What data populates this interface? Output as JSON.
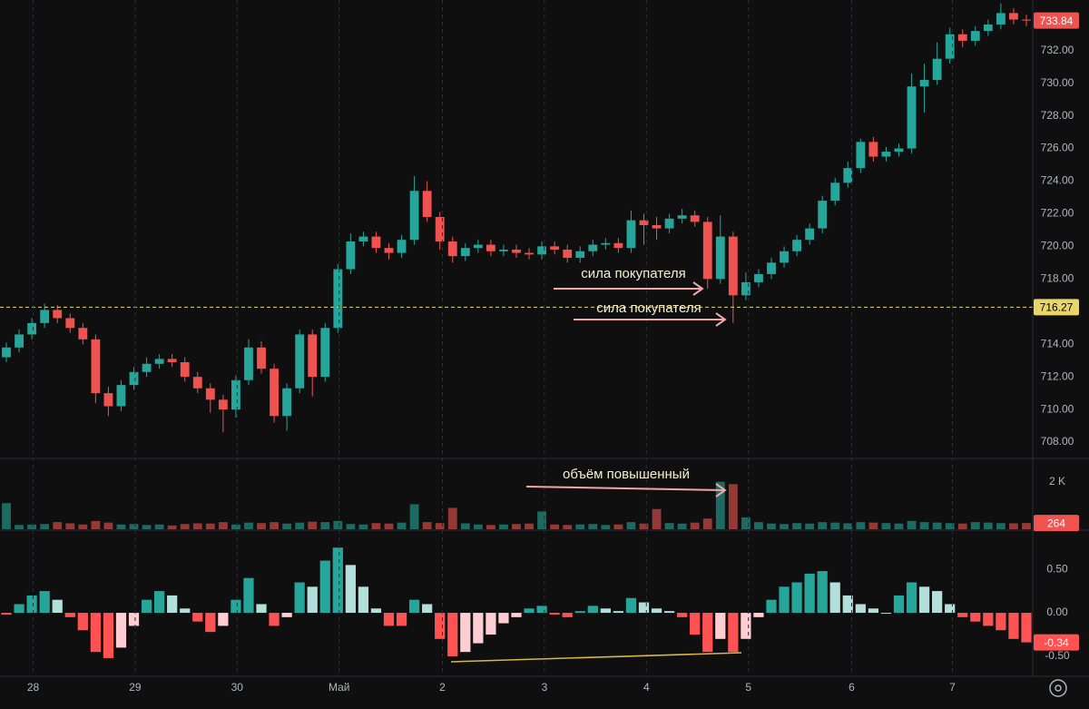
{
  "chart_data": [
    {
      "type": "candlestick",
      "up_color": "#26a69a",
      "down_color": "#ef5350",
      "price_line": 716.27,
      "price_line_color": "#e8d66b",
      "annotations": [
        "сила покупателя",
        "сила покупателя"
      ],
      "xlim": [
        -0.5,
        80.5
      ],
      "xticks": [
        {
          "value": 2.1,
          "label": "28"
        },
        {
          "value": 10.1,
          "label": "29"
        },
        {
          "value": 18.1,
          "label": "30"
        },
        {
          "value": 26.1,
          "label": "Май"
        },
        {
          "value": 34.2,
          "label": "2"
        },
        {
          "value": 42.2,
          "label": "3"
        },
        {
          "value": 50.2,
          "label": "4"
        },
        {
          "value": 58.2,
          "label": "5"
        },
        {
          "value": 66.3,
          "label": "6"
        },
        {
          "value": 74.2,
          "label": "7"
        }
      ],
      "ylim": [
        707.0,
        735.1
      ],
      "yticks": [
        {
          "value": 708,
          "label": "708.00"
        },
        {
          "value": 710,
          "label": "710.00"
        },
        {
          "value": 712,
          "label": "712.00"
        },
        {
          "value": 714,
          "label": "714.00"
        },
        {
          "value": 716,
          "label": "716.00"
        },
        {
          "value": 718,
          "label": "718.00"
        },
        {
          "value": 720,
          "label": "720.00"
        },
        {
          "value": 722,
          "label": "722.00"
        },
        {
          "value": 724,
          "label": "724.00"
        },
        {
          "value": 726,
          "label": "726.00"
        },
        {
          "value": 728,
          "label": "728.00"
        },
        {
          "value": 730,
          "label": "730.00"
        },
        {
          "value": 732,
          "label": "732.00"
        }
      ],
      "x": [
        0,
        1,
        2,
        3,
        4,
        5,
        6,
        7,
        8,
        9,
        10,
        11,
        12,
        13,
        14,
        15,
        16,
        17,
        18,
        19,
        20,
        21,
        22,
        23,
        24,
        25,
        26,
        27,
        28,
        29,
        30,
        31,
        32,
        33,
        34,
        35,
        36,
        37,
        38,
        39,
        40,
        41,
        42,
        43,
        44,
        45,
        46,
        47,
        48,
        49,
        50,
        51,
        52,
        53,
        54,
        55,
        56,
        57,
        58,
        59,
        60,
        61,
        62,
        63,
        64,
        65,
        66,
        67,
        68,
        69,
        70,
        71,
        72,
        73,
        74,
        75,
        76,
        77,
        78,
        79,
        80
      ],
      "open": [
        713.2,
        713.8,
        714.6,
        715.3,
        716.1,
        715.6,
        715.0,
        714.3,
        711.0,
        710.2,
        711.5,
        712.3,
        712.8,
        713.1,
        712.9,
        712.0,
        711.3,
        710.6,
        710.0,
        711.8,
        713.8,
        712.5,
        709.6,
        711.3,
        714.6,
        712.0,
        715.0,
        718.6,
        720.3,
        720.6,
        719.9,
        719.6,
        720.4,
        723.4,
        721.8,
        720.3,
        719.4,
        719.9,
        720.1,
        719.7,
        719.8,
        719.6,
        719.5,
        720.0,
        719.8,
        719.3,
        719.7,
        720.1,
        720.2,
        719.9,
        721.6,
        721.3,
        721.1,
        721.7,
        721.9,
        721.5,
        718.0,
        720.6,
        717.0,
        717.8,
        718.3,
        719.0,
        719.7,
        720.4,
        721.1,
        722.8,
        723.9,
        724.8,
        726.4,
        725.5,
        725.8,
        726.0,
        729.8,
        730.2,
        731.5,
        733.0,
        732.6,
        733.2,
        733.6,
        734.3,
        733.9
      ],
      "high": [
        714.1,
        714.9,
        715.6,
        716.5,
        716.4,
        715.9,
        715.3,
        714.6,
        711.4,
        711.8,
        712.6,
        713.2,
        713.4,
        713.4,
        713.2,
        712.3,
        711.6,
        710.9,
        712.1,
        714.3,
        714.2,
        712.8,
        711.6,
        714.9,
        714.9,
        715.3,
        718.9,
        720.8,
        720.9,
        720.9,
        720.2,
        720.7,
        724.3,
        724.0,
        722.1,
        720.6,
        720.2,
        720.4,
        720.4,
        720.1,
        720.1,
        719.9,
        720.3,
        720.3,
        720.1,
        720.0,
        720.4,
        720.5,
        720.5,
        722.2,
        722.0,
        721.8,
        722.0,
        722.3,
        722.2,
        721.8,
        721.9,
        720.9,
        718.4,
        718.6,
        719.3,
        720.0,
        720.7,
        721.4,
        723.1,
        724.2,
        725.2,
        726.6,
        726.7,
        726.1,
        726.3,
        730.6,
        731.2,
        732.5,
        733.4,
        733.3,
        733.5,
        733.9,
        734.9,
        734.6,
        734.2
      ],
      "low": [
        712.9,
        713.5,
        714.3,
        715.0,
        715.3,
        714.7,
        714.0,
        710.4,
        709.6,
        709.9,
        711.2,
        712.0,
        712.5,
        712.6,
        711.7,
        711.0,
        709.8,
        708.6,
        709.5,
        711.5,
        712.2,
        709.2,
        708.7,
        711.0,
        710.8,
        711.7,
        714.7,
        718.3,
        720.0,
        719.6,
        719.2,
        719.3,
        720.1,
        721.5,
        719.8,
        719.0,
        719.1,
        719.6,
        719.4,
        719.4,
        719.3,
        719.2,
        719.2,
        719.5,
        719.0,
        719.0,
        719.4,
        719.8,
        719.6,
        719.6,
        720.1,
        720.4,
        720.8,
        721.4,
        721.2,
        717.4,
        717.7,
        715.3,
        716.7,
        717.5,
        718.0,
        718.7,
        719.4,
        720.1,
        720.8,
        722.5,
        723.6,
        724.5,
        725.2,
        725.2,
        725.5,
        725.7,
        728.2,
        729.9,
        731.2,
        732.2,
        732.3,
        732.9,
        733.3,
        733.6,
        733.5
      ],
      "close": [
        713.8,
        714.6,
        715.3,
        716.1,
        715.6,
        715.0,
        714.3,
        711.0,
        710.2,
        711.5,
        712.3,
        712.8,
        713.1,
        712.9,
        712.0,
        711.3,
        710.6,
        710.0,
        711.8,
        713.8,
        712.5,
        709.6,
        711.3,
        714.6,
        712.0,
        715.0,
        718.6,
        720.3,
        720.6,
        719.9,
        719.6,
        720.4,
        723.4,
        721.8,
        720.3,
        719.4,
        719.9,
        720.1,
        719.7,
        719.8,
        719.6,
        719.5,
        720.0,
        719.8,
        719.3,
        719.7,
        720.1,
        720.2,
        719.9,
        721.6,
        721.3,
        721.1,
        721.7,
        721.9,
        721.5,
        718.0,
        720.6,
        717.0,
        717.8,
        718.3,
        719.0,
        719.7,
        720.4,
        721.1,
        722.8,
        723.9,
        724.8,
        726.4,
        725.5,
        725.8,
        726.0,
        729.8,
        730.2,
        731.5,
        733.0,
        732.6,
        733.2,
        733.6,
        734.3,
        733.9,
        733.84
      ]
    },
    {
      "type": "bar",
      "annotations": [
        "объём повышенный"
      ],
      "ylim": [
        0,
        2980
      ],
      "yticks": [
        {
          "value": 2000,
          "label": "2 K"
        }
      ],
      "values": [
        1100,
        180,
        200,
        220,
        300,
        250,
        200,
        350,
        280,
        200,
        220,
        180,
        200,
        160,
        220,
        250,
        240,
        300,
        200,
        280,
        260,
        300,
        240,
        280,
        320,
        300,
        350,
        220,
        200,
        260,
        240,
        280,
        1050,
        300,
        260,
        900,
        250,
        200,
        180,
        200,
        220,
        240,
        750,
        200,
        180,
        200,
        220,
        180,
        200,
        300,
        240,
        850,
        260,
        240,
        280,
        450,
        2000,
        1900,
        500,
        300,
        240,
        220,
        260,
        240,
        300,
        280,
        250,
        300,
        280,
        260,
        240,
        350,
        300,
        280,
        260,
        240,
        300,
        280,
        260,
        250,
        264
      ]
    },
    {
      "type": "histogram",
      "up_color": "#26a69a",
      "up_light": "#b2dfdb",
      "down_color": "#ff5252",
      "down_light": "#ffcdd2",
      "ylim": [
        -0.73,
        0.94
      ],
      "yticks": [
        {
          "value": 0.5,
          "label": "0.50"
        },
        {
          "value": 0,
          "label": "0.00"
        },
        {
          "value": -0.5,
          "label": "-0.50"
        }
      ],
      "values": [
        -0.02,
        0.1,
        0.2,
        0.25,
        0.15,
        -0.05,
        -0.2,
        -0.45,
        -0.52,
        -0.4,
        -0.15,
        0.15,
        0.25,
        0.2,
        0.05,
        -0.1,
        -0.22,
        -0.15,
        0.15,
        0.4,
        0.1,
        -0.15,
        -0.05,
        0.35,
        0.3,
        0.6,
        0.75,
        0.55,
        0.3,
        0.05,
        -0.15,
        -0.15,
        0.15,
        0.1,
        -0.3,
        -0.5,
        -0.45,
        -0.35,
        -0.25,
        -0.12,
        -0.05,
        0.05,
        0.08,
        -0.02,
        -0.05,
        0.02,
        0.08,
        0.05,
        0.02,
        0.17,
        0.12,
        0.05,
        0.02,
        -0.05,
        -0.25,
        -0.45,
        -0.3,
        -0.45,
        -0.3,
        -0.05,
        0.15,
        0.3,
        0.35,
        0.45,
        0.48,
        0.35,
        0.2,
        0.1,
        0.05,
        0.0,
        0.2,
        0.35,
        0.3,
        0.25,
        0.1,
        -0.05,
        -0.1,
        -0.15,
        -0.2,
        -0.3,
        -0.34
      ]
    }
  ]
}
